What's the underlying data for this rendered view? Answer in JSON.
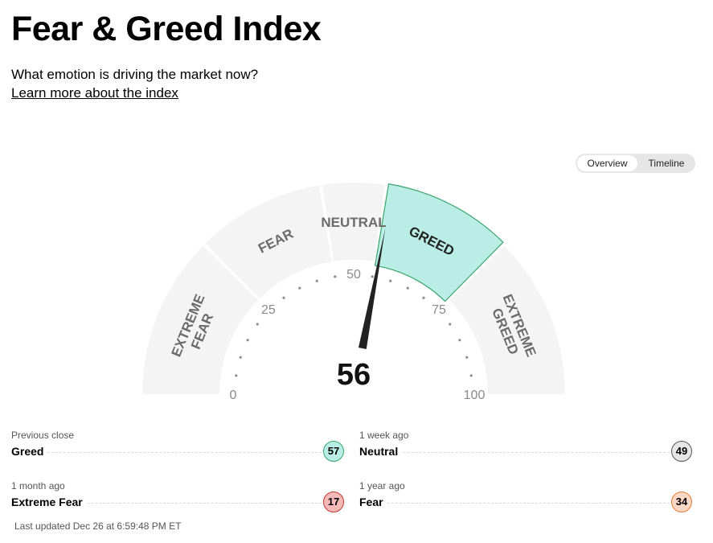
{
  "page": {
    "title": "Fear & Greed Index",
    "subtitle": "What emotion is driving the market now?",
    "learn_link": "Learn more about the index"
  },
  "view_toggle": {
    "options": [
      "Overview",
      "Timeline"
    ],
    "selected": "Overview"
  },
  "gauge": {
    "value": 56,
    "value_text": "56",
    "active_zone": "GREED",
    "zones": [
      {
        "label_lines": [
          "EXTREME",
          "FEAR"
        ],
        "from": 0,
        "to": 25
      },
      {
        "label_lines": [
          "FEAR"
        ],
        "from": 25,
        "to": 45
      },
      {
        "label_lines": [
          "NEUTRAL"
        ],
        "from": 45,
        "to": 55
      },
      {
        "label_lines": [
          "GREED"
        ],
        "from": 55,
        "to": 75
      },
      {
        "label_lines": [
          "EXTREME",
          "GREED"
        ],
        "from": 75,
        "to": 100
      }
    ],
    "scale_labels": [
      "0",
      "25",
      "50",
      "75",
      "100"
    ],
    "colors": {
      "zone_fill": "#f4f4f4",
      "active_fill": "#b9ede6",
      "active_stroke": "#3aa56b",
      "needle": "#222222"
    }
  },
  "history": [
    {
      "label": "Previous close",
      "rating": "Greed",
      "value": "57",
      "fill": "#b9ede6",
      "stroke": "#3aa56b"
    },
    {
      "label": "1 week ago",
      "rating": "Neutral",
      "value": "49",
      "fill": "#e6e6e6",
      "stroke": "#555555"
    },
    {
      "label": "1 month ago",
      "rating": "Extreme Fear",
      "value": "17",
      "fill": "#f6b8b8",
      "stroke": "#c0392b"
    },
    {
      "label": "1 year ago",
      "rating": "Fear",
      "value": "34",
      "fill": "#fdd8c4",
      "stroke": "#e07b3a"
    }
  ],
  "last_updated": "Last updated Dec 26 at 6:59:48 PM ET"
}
